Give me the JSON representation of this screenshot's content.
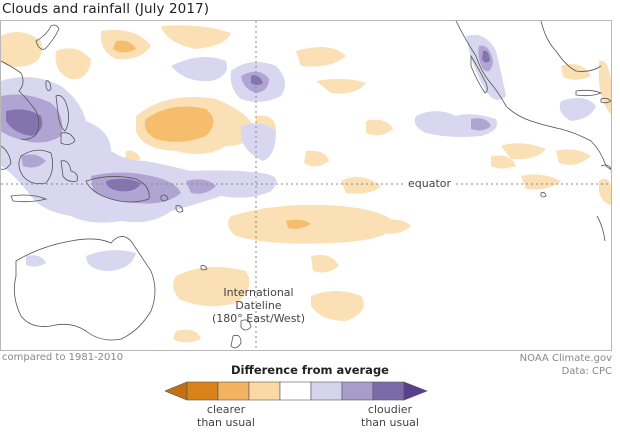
{
  "title": "Clouds and rainfall (July 2017)",
  "labels": {
    "equator": "equator",
    "dateline": [
      "International",
      "Dateline",
      "(180° East/West)"
    ]
  },
  "footer": {
    "baseline": "compared to 1981-2010",
    "source": [
      "NOAA Climate.gov",
      "Data: CPC"
    ]
  },
  "legend": {
    "title": "Difference from average",
    "clearer": [
      "clearer",
      "than usual"
    ],
    "cloudier": [
      "cloudier",
      "than usual"
    ],
    "colors": [
      "#d9821a",
      "#f2b25f",
      "#fbd9a6",
      "#ffffff",
      "#d6d4ec",
      "#a89ccb",
      "#7d6aa8",
      "#5a3f8c"
    ]
  },
  "colors": {
    "orange_light": "#fbe0b5",
    "orange_mid": "#f6bd6c",
    "purple_light": "#d9d6ef",
    "purple_mid": "#b0a5d2",
    "purple_dark": "#8573b0",
    "coast": "#555555"
  }
}
